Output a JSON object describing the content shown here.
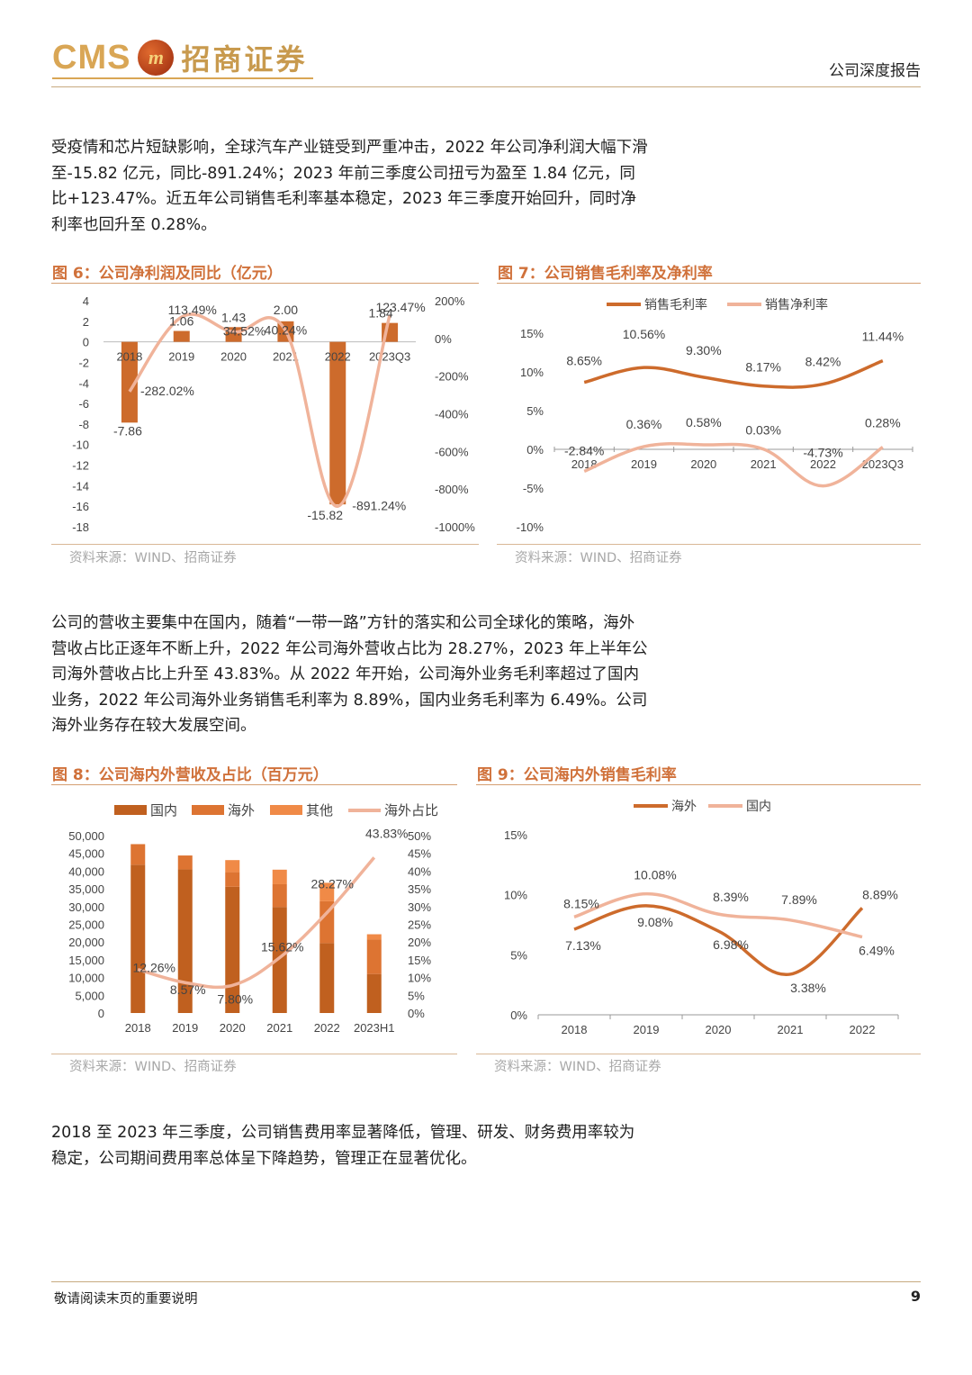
{
  "header": {
    "logo_cms": "CMS",
    "logo_badge": "m",
    "logo_cn": "招商证券",
    "report_type": "公司深度报告"
  },
  "paragraphs": {
    "p1": "受疫情和芯片短缺影响，全球汽车产业链受到严重冲击，2022 年公司净利润大幅下滑至-15.82 亿元，同比-891.24%；2023 年前三季度公司扭亏为盈至 1.84 亿元，同比+123.47%。近五年公司销售毛利率基本稳定，2023 年三季度开始回升，同时净利率也回升至 0.28%。",
    "p2": "公司的营收主要集中在国内，随着“一带一路”方针的落实和公司全球化的策略，海外营收占比正逐年不断上升，2022 年公司海外营收占比为 28.27%，2023 年上半年公司海外营收占比上升至 43.83%。从 2022 年开始，公司海外业务毛利率超过了国内业务，2022 年公司海外业务销售毛利率为 8.89%，国内业务毛利率为 6.49%。公司海外业务存在较大发展空间。",
    "p3": "2018 至 2023 年三季度，公司销售费用率显著降低，管理、研发、财务费用率较为稳定，公司期间费用率总体呈下降趋势，管理正在显著优化。"
  },
  "figures": {
    "fig6_title": "图 6：公司净利润及同比（亿元）",
    "fig7_title": "图 7：公司销售毛利率及净利率",
    "fig8_title": "图 8：公司海内外营收及占比（百万元）",
    "fig9_title": "图 9：公司海内外销售毛利率",
    "source": "资料来源：WIND、招商证券"
  },
  "footer": {
    "note": "敬请阅读末页的重要说明",
    "page": "9"
  },
  "colors": {
    "dark_orange": "#cd6b2c",
    "light_salmon": "#f0b39a",
    "domestic": "#c0601f",
    "overseas": "#dd7432",
    "other": "#f08a47",
    "title": "#d0713a"
  },
  "chart_data": [
    {
      "type": "bar",
      "categories": [
        "2018",
        "2019",
        "2020",
        "2021",
        "2022",
        "2023Q3"
      ],
      "series": [
        {
          "values": [
            -7.86,
            1.06,
            1.43,
            2.0,
            -15.82,
            1.84
          ],
          "labels": [
            "-7.86",
            "1.06",
            "1.43",
            "2.00",
            "-15.82",
            "1.84"
          ]
        },
        {
          "values": [
            -282.02,
            113.49,
            34.52,
            40.24,
            -891.24,
            123.47
          ],
          "labels": [
            "-282.02%",
            "113.49%",
            "34.52%",
            "40.24%",
            "-891.24%",
            "123.47%"
          ],
          "axis": "right",
          "type": "line"
        }
      ],
      "ylim": [
        -18,
        4
      ],
      "yticks": [
        "4",
        "2",
        "0",
        "-2",
        "-4",
        "-6",
        "-8",
        "-10",
        "-12",
        "-14",
        "-16",
        "-18"
      ],
      "y2lim": [
        -1000,
        200
      ],
      "y2ticks": [
        "200%",
        "0%",
        "-200%",
        "-400%",
        "-600%",
        "-800%",
        "-1000%"
      ]
    },
    {
      "type": "line",
      "categories": [
        "2018",
        "2019",
        "2020",
        "2021",
        "2022",
        "2023Q3"
      ],
      "series": [
        {
          "name": "销售毛利率",
          "values": [
            8.65,
            10.56,
            9.3,
            8.17,
            8.42,
            11.44
          ],
          "labels": [
            "8.65%",
            "10.56%",
            "9.30%",
            "8.17%",
            "8.42%",
            "11.44%"
          ]
        },
        {
          "name": "销售净利率",
          "values": [
            -2.84,
            0.36,
            0.58,
            0.03,
            -4.73,
            0.28
          ],
          "labels": [
            "-2.84%",
            "0.36%",
            "0.58%",
            "0.03%",
            "-4.73%",
            "0.28%"
          ]
        }
      ],
      "ylim": [
        -10,
        15
      ],
      "yticks": [
        "15%",
        "10%",
        "5%",
        "0%",
        "-5%",
        "-10%"
      ],
      "legend": "top"
    },
    {
      "type": "bar",
      "categories": [
        "2018",
        "2019",
        "2020",
        "2021",
        "2022",
        "2023H1"
      ],
      "series": [
        {
          "name": "国内",
          "values": [
            41800,
            40500,
            35600,
            29900,
            19700,
            11000
          ]
        },
        {
          "name": "海外",
          "values": [
            5800,
            3900,
            4100,
            6400,
            11800,
            9700
          ]
        },
        {
          "name": "其他",
          "values": [
            0,
            0,
            3400,
            4100,
            5200,
            1500
          ]
        },
        {
          "name": "海外占比",
          "values": [
            12.26,
            8.57,
            7.8,
            15.62,
            28.27,
            43.83
          ],
          "labels": [
            "12.26%",
            "8.57%",
            "7.80%",
            "15.62%",
            "28.27%",
            "43.83%"
          ],
          "axis": "right",
          "type": "line"
        }
      ],
      "stacked": true,
      "ylim": [
        0,
        50000
      ],
      "yticks": [
        "50,000",
        "45,000",
        "40,000",
        "35,000",
        "30,000",
        "25,000",
        "20,000",
        "15,000",
        "10,000",
        "5,000",
        "0"
      ],
      "y2lim": [
        0,
        50
      ],
      "y2ticks": [
        "50%",
        "45%",
        "40%",
        "35%",
        "30%",
        "25%",
        "20%",
        "15%",
        "10%",
        "5%",
        "0%"
      ],
      "legend": "top"
    },
    {
      "type": "line",
      "categories": [
        "2018",
        "2019",
        "2020",
        "2021",
        "2022"
      ],
      "series": [
        {
          "name": "海外",
          "values": [
            7.13,
            9.08,
            6.98,
            3.38,
            8.89
          ],
          "labels": [
            "7.13%",
            "9.08%",
            "6.98%",
            "3.38%",
            "8.89%"
          ]
        },
        {
          "name": "国内",
          "values": [
            8.15,
            10.08,
            8.39,
            7.89,
            6.49
          ],
          "labels": [
            "8.15%",
            "10.08%",
            "8.39%",
            "7.89%",
            "6.49%"
          ]
        }
      ],
      "ylim": [
        0,
        15
      ],
      "yticks": [
        "15%",
        "10%",
        "5%",
        "0%"
      ],
      "legend": "top"
    }
  ]
}
